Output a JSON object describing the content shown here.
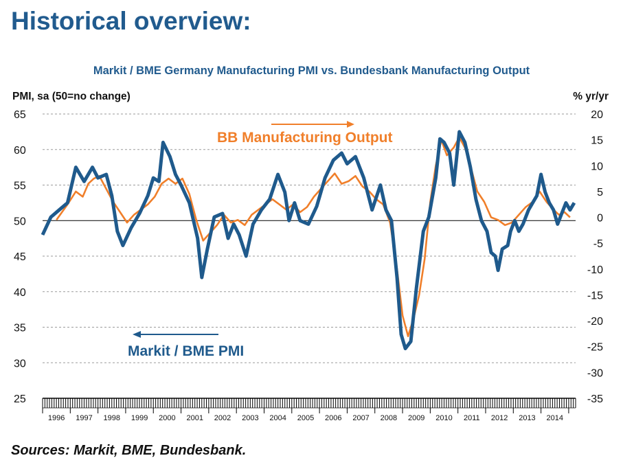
{
  "page": {
    "heading": "Historical overview:",
    "source": "Sources: Markit, BME, Bundesbank."
  },
  "colors": {
    "pmi": "#1f5a8c",
    "output": "#f07f2a",
    "grid": "#9a9a9a",
    "heading": "#215b8e"
  },
  "chart_data": {
    "type": "line",
    "title": "Markit / BME Germany Manufacturing PMI vs. Bundesbank Manufacturing Output",
    "ylabel_left": "PMI, sa (50=no change)",
    "ylabel_right": "% yr/yr",
    "ylim_left": [
      25,
      65
    ],
    "yticks_left": [
      65,
      60,
      55,
      50,
      45,
      40,
      35,
      30,
      25
    ],
    "ylim_right": [
      -35,
      20
    ],
    "yticks_right": [
      20,
      15,
      10,
      5,
      0,
      -5,
      -10,
      -15,
      -20,
      -25,
      -30,
      -35
    ],
    "x_categories": [
      "1996",
      "1997",
      "1998",
      "1999",
      "2000",
      "2001",
      "2002",
      "2003",
      "2004",
      "2005",
      "2006",
      "2007",
      "2008",
      "2009",
      "2010",
      "2011",
      "2012",
      "2013",
      "2014"
    ],
    "grid": "horizontal dashed",
    "annotations": [
      "BB Manufacturing Output",
      "Markit / BME PMI"
    ],
    "series": [
      {
        "name": "Markit / BME PMI",
        "axis": "left",
        "points": [
          [
            1996.0,
            48.0
          ],
          [
            1996.3,
            50.5
          ],
          [
            1996.6,
            51.5
          ],
          [
            1996.9,
            52.5
          ],
          [
            1997.2,
            57.5
          ],
          [
            1997.5,
            55.5
          ],
          [
            1997.8,
            57.5
          ],
          [
            1998.0,
            56.0
          ],
          [
            1998.3,
            56.5
          ],
          [
            1998.5,
            53.5
          ],
          [
            1998.7,
            48.5
          ],
          [
            1998.9,
            46.5
          ],
          [
            1999.2,
            49.0
          ],
          [
            1999.5,
            51.0
          ],
          [
            1999.8,
            53.5
          ],
          [
            2000.0,
            56.0
          ],
          [
            2000.2,
            55.5
          ],
          [
            2000.35,
            61.0
          ],
          [
            2000.6,
            59.0
          ],
          [
            2000.8,
            56.5
          ],
          [
            2001.0,
            55.0
          ],
          [
            2001.3,
            52.5
          ],
          [
            2001.6,
            47.5
          ],
          [
            2001.75,
            42.0
          ],
          [
            2001.95,
            46.0
          ],
          [
            2002.2,
            50.5
          ],
          [
            2002.5,
            51.0
          ],
          [
            2002.7,
            47.5
          ],
          [
            2002.9,
            49.5
          ],
          [
            2003.1,
            48.0
          ],
          [
            2003.35,
            45.0
          ],
          [
            2003.6,
            49.5
          ],
          [
            2003.9,
            51.5
          ],
          [
            2004.2,
            53.0
          ],
          [
            2004.5,
            56.5
          ],
          [
            2004.75,
            54.0
          ],
          [
            2004.9,
            50.0
          ],
          [
            2005.1,
            52.5
          ],
          [
            2005.3,
            50.0
          ],
          [
            2005.6,
            49.5
          ],
          [
            2005.9,
            52.0
          ],
          [
            2006.2,
            56.0
          ],
          [
            2006.5,
            58.5
          ],
          [
            2006.8,
            59.5
          ],
          [
            2007.0,
            58.0
          ],
          [
            2007.3,
            59.0
          ],
          [
            2007.6,
            56.0
          ],
          [
            2007.8,
            53.0
          ],
          [
            2007.9,
            51.5
          ],
          [
            2008.2,
            55.0
          ],
          [
            2008.4,
            51.5
          ],
          [
            2008.6,
            50.0
          ],
          [
            2008.8,
            42.0
          ],
          [
            2008.95,
            34.0
          ],
          [
            2009.1,
            32.0
          ],
          [
            2009.3,
            33.0
          ],
          [
            2009.5,
            40.5
          ],
          [
            2009.75,
            48.5
          ],
          [
            2009.95,
            50.5
          ],
          [
            2010.2,
            56.0
          ],
          [
            2010.35,
            61.5
          ],
          [
            2010.5,
            61.0
          ],
          [
            2010.7,
            59.5
          ],
          [
            2010.85,
            55.0
          ],
          [
            2011.05,
            62.5
          ],
          [
            2011.25,
            61.0
          ],
          [
            2011.45,
            57.5
          ],
          [
            2011.65,
            53.0
          ],
          [
            2011.85,
            50.0
          ],
          [
            2012.05,
            48.5
          ],
          [
            2012.2,
            45.5
          ],
          [
            2012.35,
            45.0
          ],
          [
            2012.45,
            43.0
          ],
          [
            2012.6,
            46.0
          ],
          [
            2012.8,
            46.5
          ],
          [
            2012.9,
            48.5
          ],
          [
            2013.05,
            50.0
          ],
          [
            2013.2,
            48.5
          ],
          [
            2013.35,
            49.5
          ],
          [
            2013.55,
            51.5
          ],
          [
            2013.7,
            52.5
          ],
          [
            2013.85,
            53.5
          ],
          [
            2014.0,
            56.5
          ],
          [
            2014.15,
            54.0
          ],
          [
            2014.3,
            52.5
          ],
          [
            2014.45,
            51.5
          ],
          [
            2014.6,
            49.5
          ],
          [
            2014.75,
            51.0
          ],
          [
            2014.9,
            52.5
          ],
          [
            2015.05,
            51.5
          ],
          [
            2015.2,
            52.5
          ]
        ]
      },
      {
        "name": "BB Manufacturing Output",
        "axis": "right",
        "points": [
          [
            1996.5,
            -0.5
          ],
          [
            1996.7,
            1.0
          ],
          [
            1996.9,
            2.5
          ],
          [
            1997.2,
            5.0
          ],
          [
            1997.45,
            4.0
          ],
          [
            1997.65,
            6.5
          ],
          [
            1997.85,
            7.5
          ],
          [
            1998.05,
            8.0
          ],
          [
            1998.3,
            5.5
          ],
          [
            1998.55,
            3.0
          ],
          [
            1998.8,
            1.0
          ],
          [
            1999.05,
            -1.0
          ],
          [
            1999.3,
            0.5
          ],
          [
            1999.55,
            1.5
          ],
          [
            1999.8,
            2.5
          ],
          [
            2000.05,
            4.0
          ],
          [
            2000.3,
            6.5
          ],
          [
            2000.55,
            7.5
          ],
          [
            2000.8,
            6.5
          ],
          [
            2001.05,
            7.5
          ],
          [
            2001.3,
            4.5
          ],
          [
            2001.55,
            -0.5
          ],
          [
            2001.8,
            -4.5
          ],
          [
            2002.05,
            -3.0
          ],
          [
            2002.3,
            -1.5
          ],
          [
            2002.55,
            0.5
          ],
          [
            2002.8,
            -1.0
          ],
          [
            2003.05,
            -0.5
          ],
          [
            2003.3,
            -1.5
          ],
          [
            2003.55,
            0.5
          ],
          [
            2003.8,
            1.5
          ],
          [
            2004.05,
            2.5
          ],
          [
            2004.3,
            3.5
          ],
          [
            2004.55,
            2.5
          ],
          [
            2004.8,
            1.5
          ],
          [
            2005.05,
            2.5
          ],
          [
            2005.3,
            1.0
          ],
          [
            2005.55,
            2.0
          ],
          [
            2005.8,
            4.0
          ],
          [
            2006.05,
            5.5
          ],
          [
            2006.3,
            7.0
          ],
          [
            2006.55,
            8.5
          ],
          [
            2006.8,
            6.5
          ],
          [
            2007.05,
            7.0
          ],
          [
            2007.3,
            8.0
          ],
          [
            2007.55,
            6.0
          ],
          [
            2007.8,
            5.0
          ],
          [
            2008.05,
            3.5
          ],
          [
            2008.3,
            2.5
          ],
          [
            2008.55,
            -1.0
          ],
          [
            2008.8,
            -10.0
          ],
          [
            2009.0,
            -19.0
          ],
          [
            2009.2,
            -23.0
          ],
          [
            2009.4,
            -19.5
          ],
          [
            2009.6,
            -15.0
          ],
          [
            2009.8,
            -8.0
          ],
          [
            2010.0,
            3.0
          ],
          [
            2010.2,
            10.0
          ],
          [
            2010.4,
            15.0
          ],
          [
            2010.6,
            12.0
          ],
          [
            2010.85,
            13.5
          ],
          [
            2011.05,
            15.5
          ],
          [
            2011.25,
            13.5
          ],
          [
            2011.45,
            10.0
          ],
          [
            2011.7,
            5.0
          ],
          [
            2011.95,
            3.0
          ],
          [
            2012.2,
            0.0
          ],
          [
            2012.45,
            -0.5
          ],
          [
            2012.7,
            -1.5
          ],
          [
            2012.95,
            -1.0
          ],
          [
            2013.2,
            0.5
          ],
          [
            2013.45,
            2.0
          ],
          [
            2013.7,
            3.0
          ],
          [
            2013.95,
            5.0
          ],
          [
            2014.2,
            3.0
          ],
          [
            2014.45,
            1.5
          ],
          [
            2014.65,
            0.5
          ],
          [
            2014.85,
            1.0
          ],
          [
            2015.05,
            0.0
          ]
        ]
      }
    ]
  }
}
